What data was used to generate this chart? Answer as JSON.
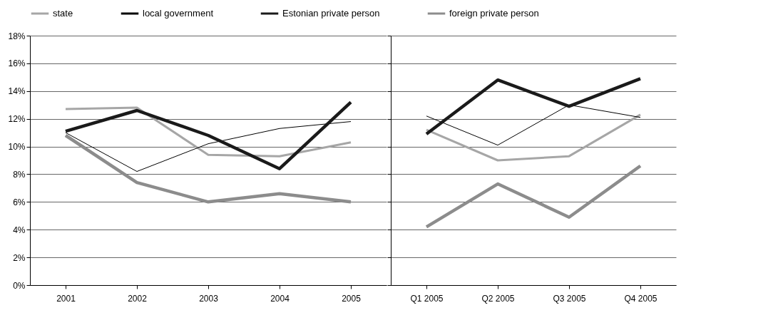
{
  "chart_data": [
    {
      "type": "line",
      "categories": [
        "2001",
        "2002",
        "2003",
        "2004",
        "2005"
      ],
      "ylim": [
        0,
        0.18
      ],
      "yticks": [
        {
          "value": 0,
          "label": "0%"
        },
        {
          "value": 0.02,
          "label": "2%"
        },
        {
          "value": 0.04,
          "label": "4%"
        },
        {
          "value": 0.06,
          "label": "6%"
        },
        {
          "value": 0.08,
          "label": "8%"
        },
        {
          "value": 0.1,
          "label": "10%"
        },
        {
          "value": 0.12,
          "label": "12%"
        },
        {
          "value": 0.14,
          "label": "14%"
        },
        {
          "value": 0.16,
          "label": "16%"
        },
        {
          "value": 0.18,
          "label": "18%"
        }
      ],
      "grid": "y",
      "legend": "top",
      "marker": "none",
      "series": [
        {
          "name": "state",
          "color": "#a6a6a6",
          "values": [
            0.127,
            0.128,
            0.094,
            0.093,
            0.103
          ]
        },
        {
          "name": "local government",
          "color": "#000000",
          "values": [
            0.11,
            0.082,
            0.102,
            0.113,
            0.118
          ]
        },
        {
          "name": "Estonian private person",
          "color": "#1a1a1a",
          "values": [
            0.111,
            0.126,
            0.108,
            0.084,
            0.132
          ]
        },
        {
          "name": "foreign private person",
          "color": "#8c8c8c",
          "values": [
            0.108,
            0.074,
            0.06,
            0.066,
            0.06
          ]
        }
      ]
    },
    {
      "type": "line",
      "categories": [
        "Q1 2005",
        "Q2 2005",
        "Q3 2005",
        "Q4 2005"
      ],
      "ylim": [
        0,
        0.18
      ],
      "yticks": [
        {
          "value": 0,
          "label": null
        },
        {
          "value": 0.02,
          "label": null
        },
        {
          "value": 0.04,
          "label": null
        },
        {
          "value": 0.06,
          "label": null
        },
        {
          "value": 0.08,
          "label": null
        },
        {
          "value": 0.1,
          "label": null
        },
        {
          "value": 0.12,
          "label": null
        },
        {
          "value": 0.14,
          "label": null
        },
        {
          "value": 0.16,
          "label": null
        },
        {
          "value": 0.18,
          "label": null
        }
      ],
      "grid": "y",
      "tick_labels": "x",
      "marker": "none",
      "series": [
        {
          "color": "#a6a6a6",
          "values": [
            0.112,
            0.09,
            0.093,
            0.123
          ]
        },
        {
          "color": "#000000",
          "values": [
            0.122,
            0.101,
            0.13,
            0.121
          ]
        },
        {
          "color": "#1a1a1a",
          "values": [
            0.109,
            0.148,
            0.129,
            0.149
          ]
        },
        {
          "color": "#8c8c8c",
          "values": [
            0.042,
            0.073,
            0.049,
            0.086
          ]
        }
      ]
    }
  ]
}
